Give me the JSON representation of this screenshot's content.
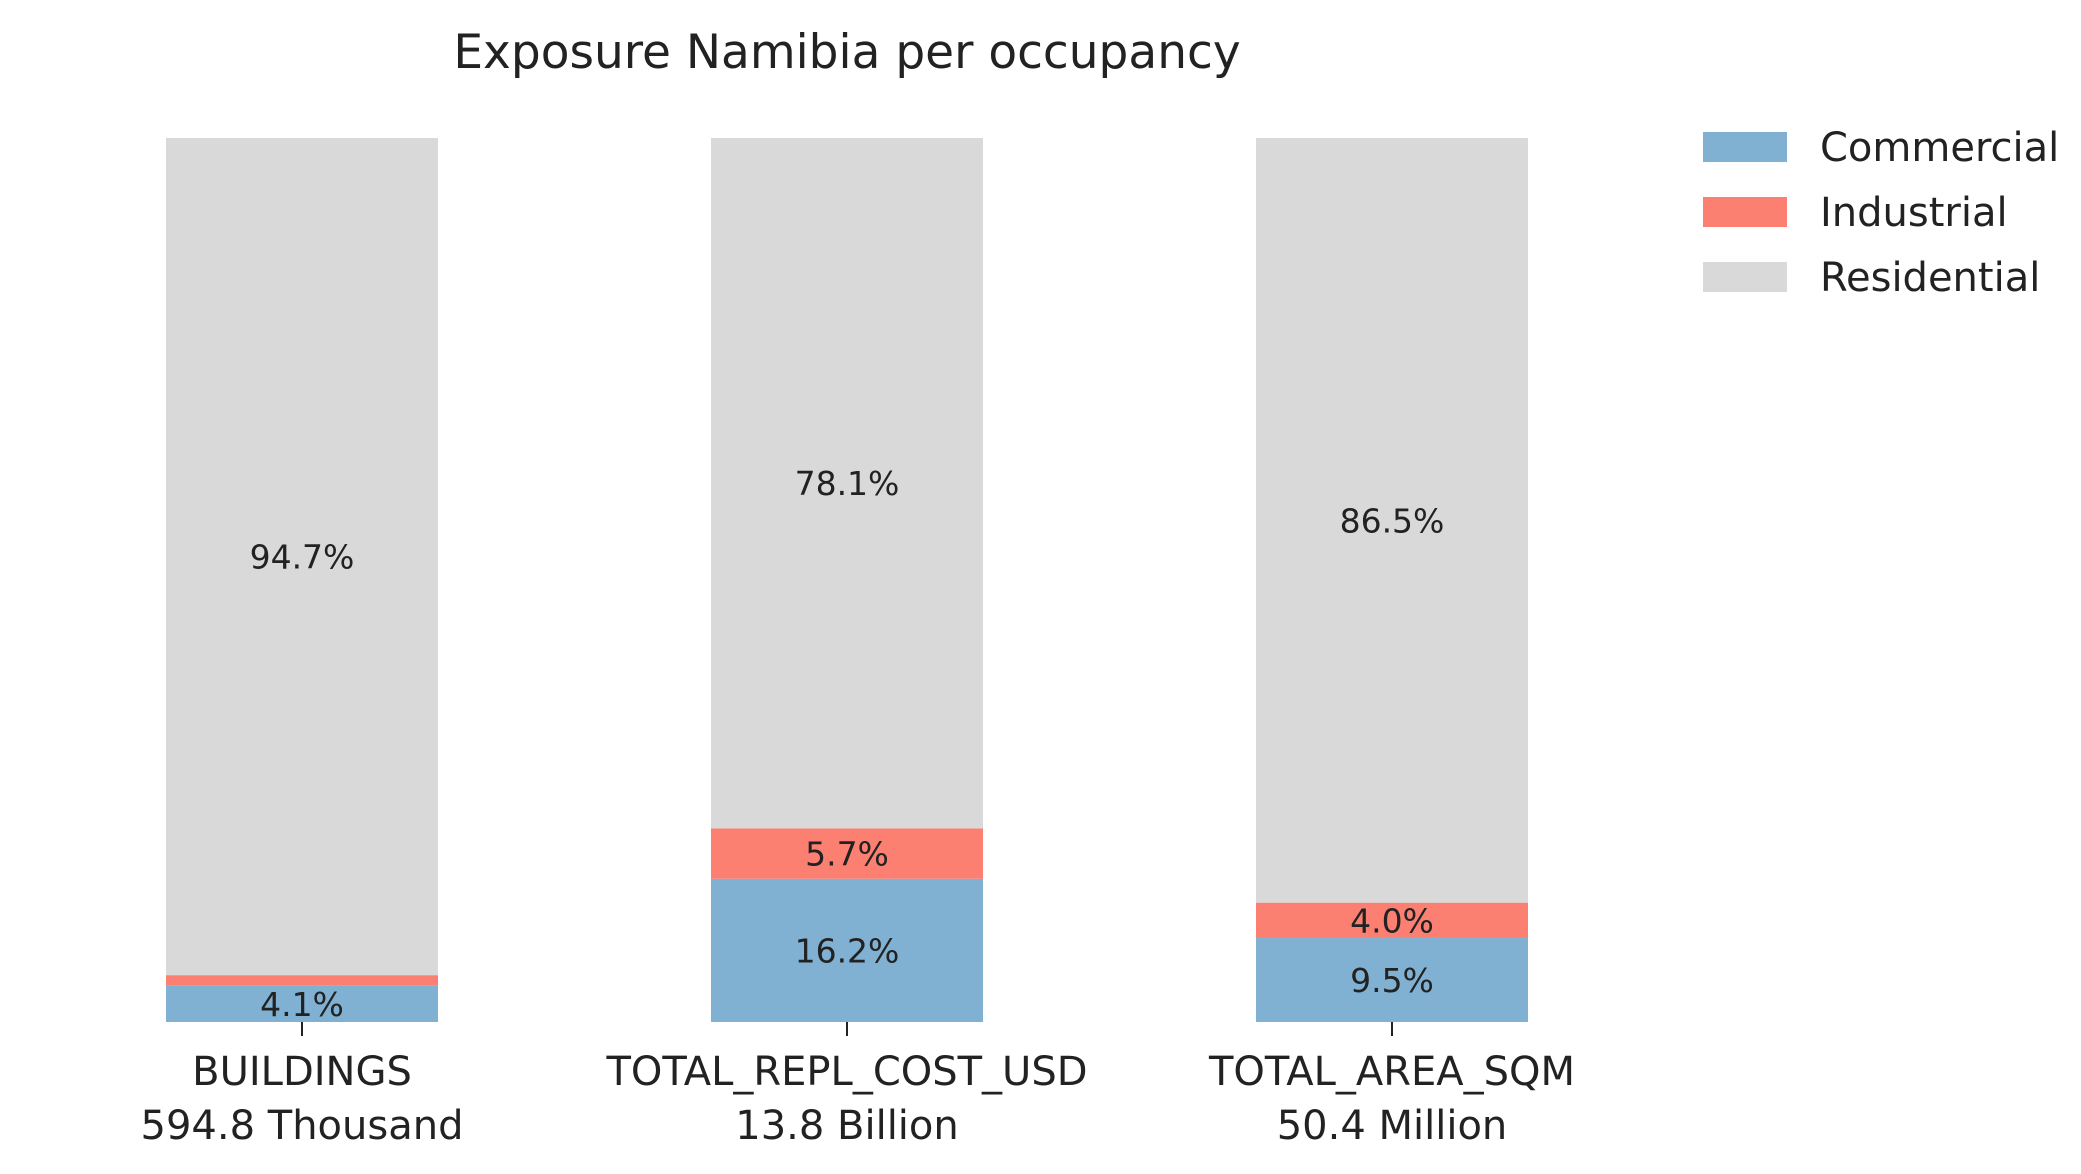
{
  "chart_data": {
    "type": "bar",
    "stacked": true,
    "normalized_percent": true,
    "title": "Exposure Namibia per occupancy",
    "categories": [
      "BUILDINGS",
      "TOTAL_REPL_COST_USD",
      "TOTAL_AREA_SQM"
    ],
    "category_totals": [
      "594.8 Thousand",
      "13.8 Billion",
      "50.4 Million"
    ],
    "series": [
      {
        "name": "Commercial",
        "color": "#80b1d3",
        "values": [
          4.1,
          16.2,
          9.5
        ],
        "labels": [
          "4.1%",
          "16.2%",
          "9.5%"
        ]
      },
      {
        "name": "Industrial",
        "color": "#fb8072",
        "values": [
          1.2,
          5.7,
          4.0
        ],
        "labels": [
          "",
          "5.7%",
          "4.0%"
        ]
      },
      {
        "name": "Residential",
        "color": "#d9d9d9",
        "values": [
          94.7,
          78.1,
          86.5
        ],
        "labels": [
          "94.7%",
          "78.1%",
          "86.5%"
        ]
      }
    ],
    "ylim": [
      0,
      100
    ],
    "grid": false,
    "legend_position": "top-right",
    "xlabel": "",
    "ylabel": ""
  }
}
